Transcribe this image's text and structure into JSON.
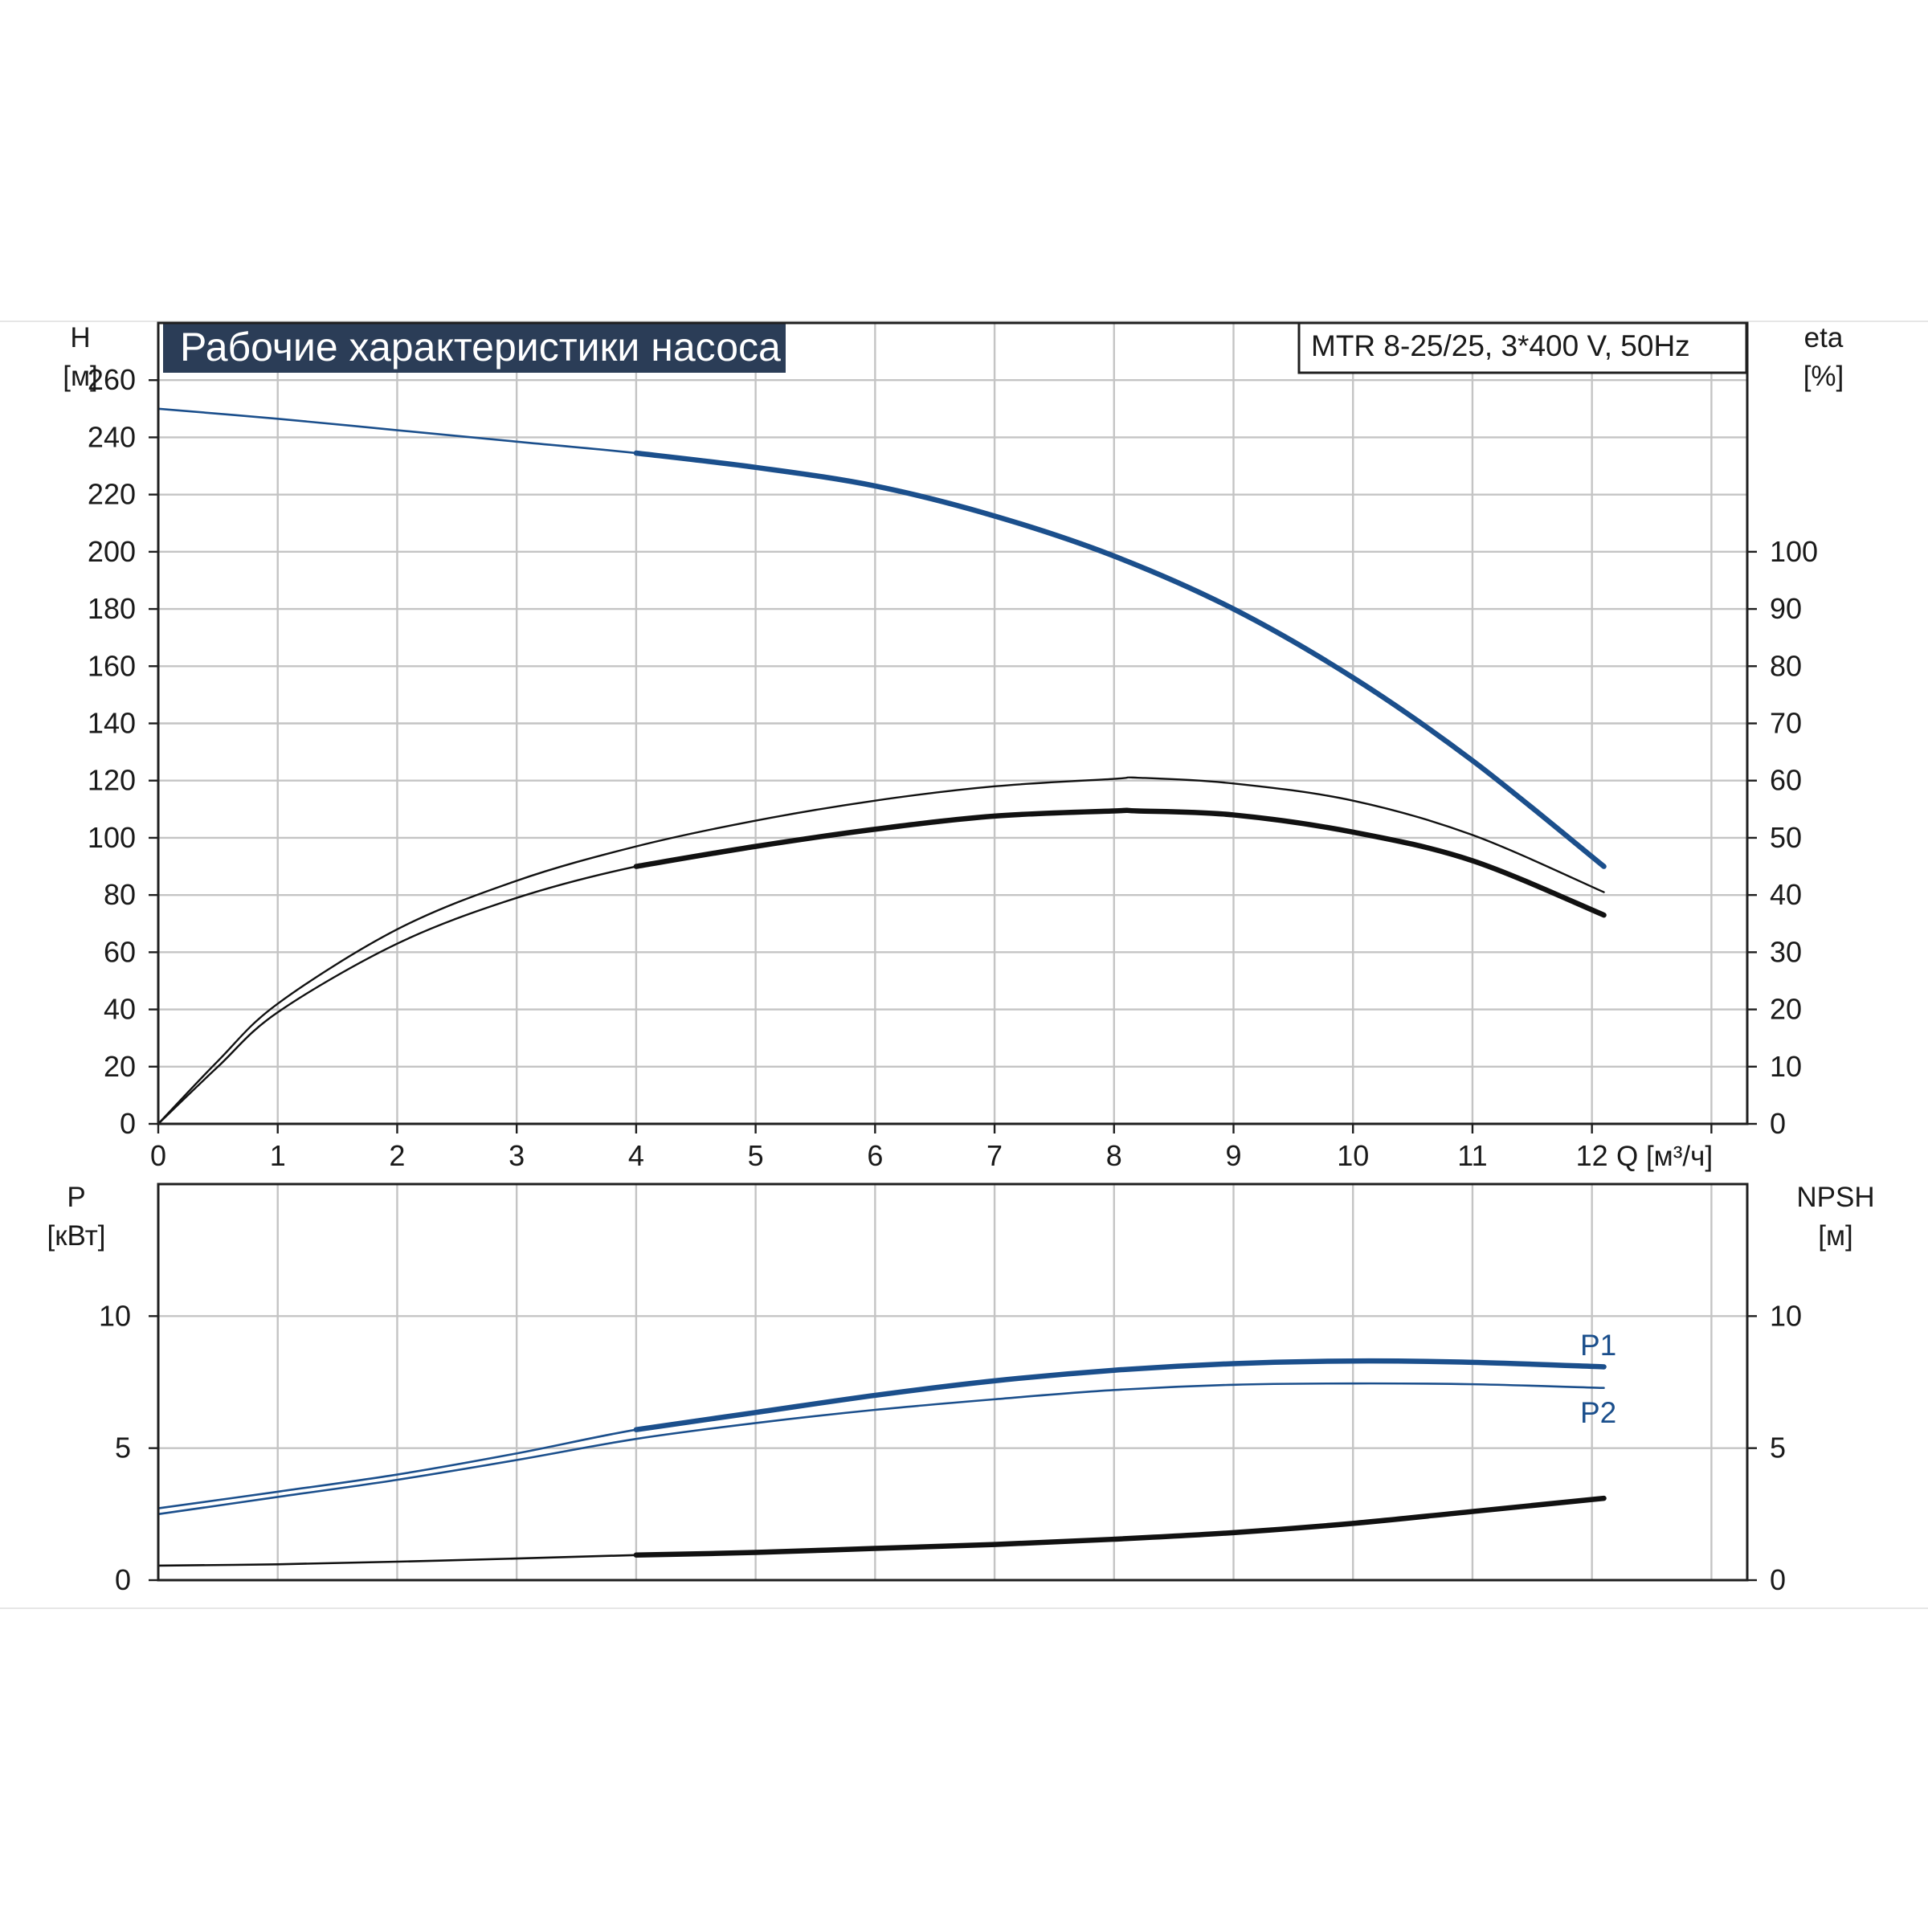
{
  "title": "Рабочие характеристики насоса",
  "model": "MTR 8-25/25, 3*400 V, 50Hz",
  "colors": {
    "blue": "#1b4f8c",
    "black": "#111111",
    "title_bg": "#2b3d57",
    "grid": "#c4c4c4"
  },
  "chart_data": [
    {
      "type": "line",
      "panel": "top",
      "x_axis": {
        "label": "Q [м³/ч]",
        "range": [
          0,
          13.3
        ],
        "ticks": [
          0,
          1,
          2,
          3,
          4,
          5,
          6,
          7,
          8,
          9,
          10,
          11,
          12
        ]
      },
      "left_axis": {
        "label_top": "H",
        "label_bottom": "[м]",
        "range": [
          0,
          280
        ],
        "ticks": [
          0,
          20,
          40,
          60,
          80,
          100,
          120,
          140,
          160,
          180,
          200,
          220,
          240,
          260
        ]
      },
      "right_axis": {
        "label_top": "eta",
        "label_bottom": "[%]",
        "range": [
          0,
          140
        ],
        "ticks": [
          0,
          10,
          20,
          30,
          40,
          50,
          60,
          70,
          80,
          90,
          100
        ]
      },
      "grid": true,
      "series": [
        {
          "axis": "left",
          "color": "#1b4f8c",
          "width_thin": 2.6,
          "width_bold": 6.5,
          "bold_from": 4,
          "x": [
            0,
            1,
            2,
            3,
            4,
            5,
            6,
            7,
            8,
            9,
            10,
            11,
            12.1
          ],
          "y": [
            250,
            246.5,
            242.5,
            238.5,
            234.5,
            229.5,
            223,
            212.5,
            198.5,
            180,
            156,
            127,
            90
          ]
        },
        {
          "axis": "right",
          "color": "#111111",
          "width_thin": 2.4,
          "width_bold": 2.6,
          "bold_from": 99,
          "x": [
            0,
            0.5,
            1,
            2,
            3,
            4,
            5,
            6,
            7,
            8,
            8.2,
            9,
            10,
            11,
            12.1
          ],
          "y": [
            0,
            11,
            21,
            34,
            42.5,
            48.5,
            53,
            56.5,
            59,
            60.3,
            60.5,
            59.5,
            56.5,
            50.5,
            40.5
          ]
        },
        {
          "axis": "right",
          "color": "#111111",
          "width_thin": 2.4,
          "width_bold": 6.5,
          "bold_from": 4,
          "x": [
            0,
            0.5,
            1,
            2,
            3,
            4,
            5,
            6,
            7,
            8,
            8.2,
            9,
            10,
            11,
            12.1
          ],
          "y": [
            0,
            10,
            19.5,
            31.5,
            39.5,
            45,
            48.5,
            51.5,
            53.8,
            54.7,
            54.7,
            54,
            51,
            46,
            36.5
          ]
        }
      ]
    },
    {
      "type": "line",
      "panel": "bottom",
      "x_axis": {
        "range": [
          0,
          13.3
        ]
      },
      "left_axis": {
        "label_top": "P",
        "label_bottom": "[кВт]",
        "range": [
          0,
          15
        ],
        "ticks": [
          0,
          5,
          10
        ]
      },
      "right_axis": {
        "label_top": "NPSH",
        "label_bottom": "[м]",
        "range": [
          0,
          15
        ],
        "ticks": [
          0,
          5,
          10
        ]
      },
      "grid": true,
      "series": [
        {
          "name": "P1",
          "axis": "left",
          "color": "#1b4f8c",
          "width_thin": 2.6,
          "width_bold": 6.5,
          "bold_from": 4,
          "x": [
            0,
            1,
            2,
            3,
            4,
            5,
            6,
            7,
            8,
            9,
            10,
            11,
            12.1
          ],
          "y": [
            2.72,
            3.35,
            4.0,
            4.8,
            5.7,
            6.35,
            7.0,
            7.55,
            7.95,
            8.2,
            8.3,
            8.25,
            8.08
          ]
        },
        {
          "name": "P2",
          "axis": "left",
          "color": "#1b4f8c",
          "width_thin": 2.6,
          "width_bold": 2.8,
          "bold_from": 99,
          "x": [
            0,
            1,
            2,
            3,
            4,
            5,
            6,
            7,
            8,
            9,
            10,
            11,
            12.1
          ],
          "y": [
            2.5,
            3.15,
            3.8,
            4.55,
            5.35,
            5.95,
            6.45,
            6.85,
            7.2,
            7.4,
            7.45,
            7.42,
            7.28
          ]
        },
        {
          "axis": "right",
          "color": "#111111",
          "width_thin": 2.6,
          "width_bold": 6.5,
          "bold_from": 4,
          "x": [
            0,
            1,
            2,
            3,
            4,
            5,
            6,
            7,
            8,
            9,
            10,
            11,
            12.1
          ],
          "y": [
            0.55,
            0.6,
            0.7,
            0.82,
            0.95,
            1.05,
            1.2,
            1.35,
            1.55,
            1.8,
            2.15,
            2.6,
            3.1
          ]
        }
      ]
    }
  ]
}
